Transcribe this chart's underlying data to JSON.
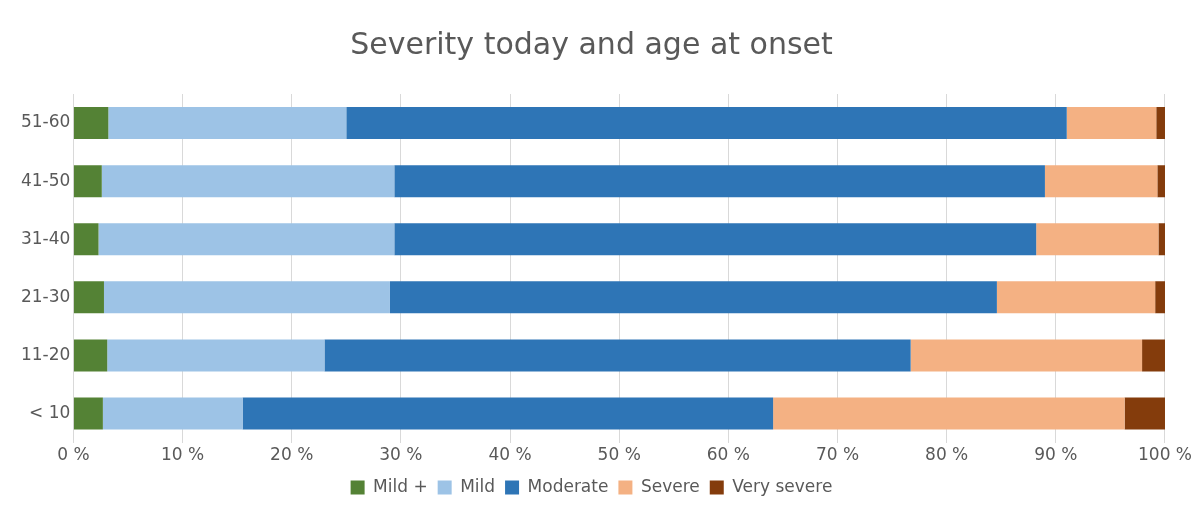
{
  "chart_data": {
    "type": "bar",
    "title": "Severity today and age at onset",
    "orientation": "horizontal",
    "stacked": true,
    "categories": [
      "51-60",
      "41-50",
      "31-40",
      "21-30",
      "11-20",
      "< 10"
    ],
    "series": [
      {
        "name": "Mild +",
        "color": "#548235",
        "values": [
          3.2,
          2.6,
          2.3,
          2.8,
          3.1,
          2.7
        ]
      },
      {
        "name": "Mild",
        "color": "#9dc3e6",
        "values": [
          21.8,
          26.8,
          27.1,
          26.2,
          19.9,
          12.8
        ]
      },
      {
        "name": "Moderate",
        "color": "#2e75b6",
        "values": [
          66,
          59.6,
          58.8,
          55.6,
          53.7,
          48.6
        ]
      },
      {
        "name": "Severe",
        "color": "#f4b183",
        "values": [
          8.2,
          10.3,
          11.2,
          14.5,
          21.2,
          32.2
        ]
      },
      {
        "name": "Very severe",
        "color": "#843c0c",
        "values": [
          0.8,
          0.7,
          0.6,
          0.9,
          2.1,
          3.7
        ]
      }
    ],
    "xlim": [
      0,
      100
    ],
    "xticks": [
      {
        "value": 0,
        "label": "0 %"
      },
      {
        "value": 10,
        "label": "10 %"
      },
      {
        "value": 20,
        "label": "20 %"
      },
      {
        "value": 30,
        "label": "30 %"
      },
      {
        "value": 40,
        "label": "40 %"
      },
      {
        "value": 50,
        "label": "50 %"
      },
      {
        "value": 60,
        "label": "60 %"
      },
      {
        "value": 70,
        "label": "70 %"
      },
      {
        "value": 80,
        "label": "80 %"
      },
      {
        "value": 90,
        "label": "90 %"
      },
      {
        "value": 100,
        "label": "100 %"
      }
    ],
    "grid": "x",
    "legend": "bottom"
  }
}
